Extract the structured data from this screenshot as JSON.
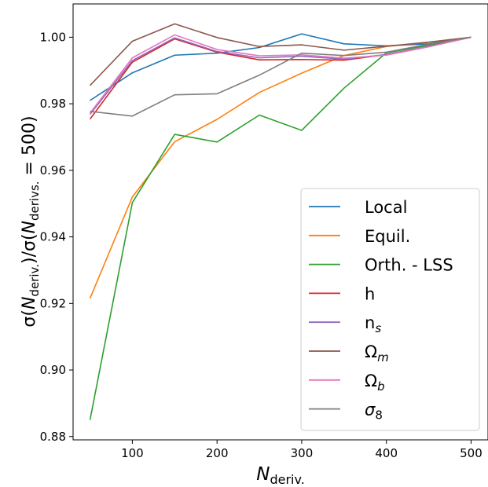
{
  "chart_data": {
    "type": "line",
    "xlabel": {
      "main": "N",
      "sub": "deriv."
    },
    "ylabel": {
      "parts": [
        {
          "t": "σ(",
          "s": "n"
        },
        {
          "t": "N",
          "s": "i"
        },
        {
          "t": "deriv.",
          "s": "sub"
        },
        {
          "t": ")/",
          "s": "n"
        },
        {
          "t": "σ(",
          "s": "n"
        },
        {
          "t": "N",
          "s": "i"
        },
        {
          "t": "derivs.",
          "s": "sub"
        },
        {
          "t": " = 500)",
          "s": "n"
        }
      ]
    },
    "xlim": [
      30,
      520
    ],
    "ylim": [
      0.879,
      1.01
    ],
    "x_ticks": [
      100,
      200,
      300,
      400,
      500
    ],
    "x_tick_labels": [
      "100",
      "200",
      "300",
      "400",
      "500"
    ],
    "y_ticks": [
      0.88,
      0.9,
      0.92,
      0.94,
      0.96,
      0.98,
      1.0
    ],
    "y_tick_labels": [
      "0.88",
      "0.90",
      "0.92",
      "0.94",
      "0.96",
      "0.98",
      "1.00"
    ],
    "grid": false,
    "legend_position": "lower-right",
    "x": [
      50,
      100,
      150,
      200,
      250,
      300,
      350,
      400,
      450,
      500
    ],
    "series": [
      {
        "name": "Local",
        "label": [
          {
            "t": "Local",
            "s": "n"
          }
        ],
        "color": "#1f77b4",
        "values": [
          0.981,
          0.9893,
          0.9946,
          0.9952,
          0.9969,
          1.001,
          0.998,
          0.9974,
          0.998,
          1.0
        ]
      },
      {
        "name": "Equil.",
        "label": [
          {
            "t": "Equil.",
            "s": "n"
          }
        ],
        "color": "#ff7f0e",
        "values": [
          0.9215,
          0.952,
          0.9686,
          0.9753,
          0.9834,
          0.9892,
          0.9945,
          0.9972,
          0.9985,
          1.0
        ]
      },
      {
        "name": "Orth. - LSS",
        "label": [
          {
            "t": "Orth. - LSS",
            "s": "n"
          }
        ],
        "color": "#2ca02c",
        "values": [
          0.885,
          0.9503,
          0.9708,
          0.9685,
          0.9766,
          0.972,
          0.9847,
          0.9953,
          0.9976,
          1.0
        ]
      },
      {
        "name": "h",
        "label": [
          {
            "t": "h",
            "s": "n"
          }
        ],
        "color": "#d62728",
        "values": [
          0.9754,
          0.9925,
          0.9995,
          0.9955,
          0.9932,
          0.9933,
          0.9931,
          0.9948,
          0.9972,
          1.0
        ]
      },
      {
        "name": "ns",
        "label": [
          {
            "t": "n",
            "s": "n"
          },
          {
            "t": "s",
            "s": "isub"
          }
        ],
        "color": "#9467bd",
        "values": [
          0.9768,
          0.993,
          0.9998,
          0.9957,
          0.9938,
          0.9943,
          0.9934,
          0.9948,
          0.9972,
          1.0
        ]
      },
      {
        "name": "Ωm",
        "label": [
          {
            "t": "Ω",
            "s": "n"
          },
          {
            "t": "m",
            "s": "isub"
          }
        ],
        "color": "#8c564b",
        "values": [
          0.9855,
          0.9988,
          1.004,
          0.9999,
          0.9972,
          0.9977,
          0.9961,
          0.9973,
          0.9985,
          1.0
        ]
      },
      {
        "name": "Ωb",
        "label": [
          {
            "t": "Ω",
            "s": "n"
          },
          {
            "t": "b",
            "s": "isub"
          }
        ],
        "color": "#e377c2",
        "values": [
          0.9772,
          0.9938,
          1.0007,
          0.9963,
          0.9944,
          0.9947,
          0.9937,
          0.9946,
          0.9971,
          1.0
        ]
      },
      {
        "name": "σ8",
        "label": [
          {
            "t": "σ",
            "s": "i"
          },
          {
            "t": "8",
            "s": "sub"
          }
        ],
        "color": "#7f7f7f",
        "values": [
          0.9777,
          0.9763,
          0.9827,
          0.983,
          0.9886,
          0.9952,
          0.9945,
          0.9955,
          0.9979,
          1.0
        ]
      }
    ]
  }
}
